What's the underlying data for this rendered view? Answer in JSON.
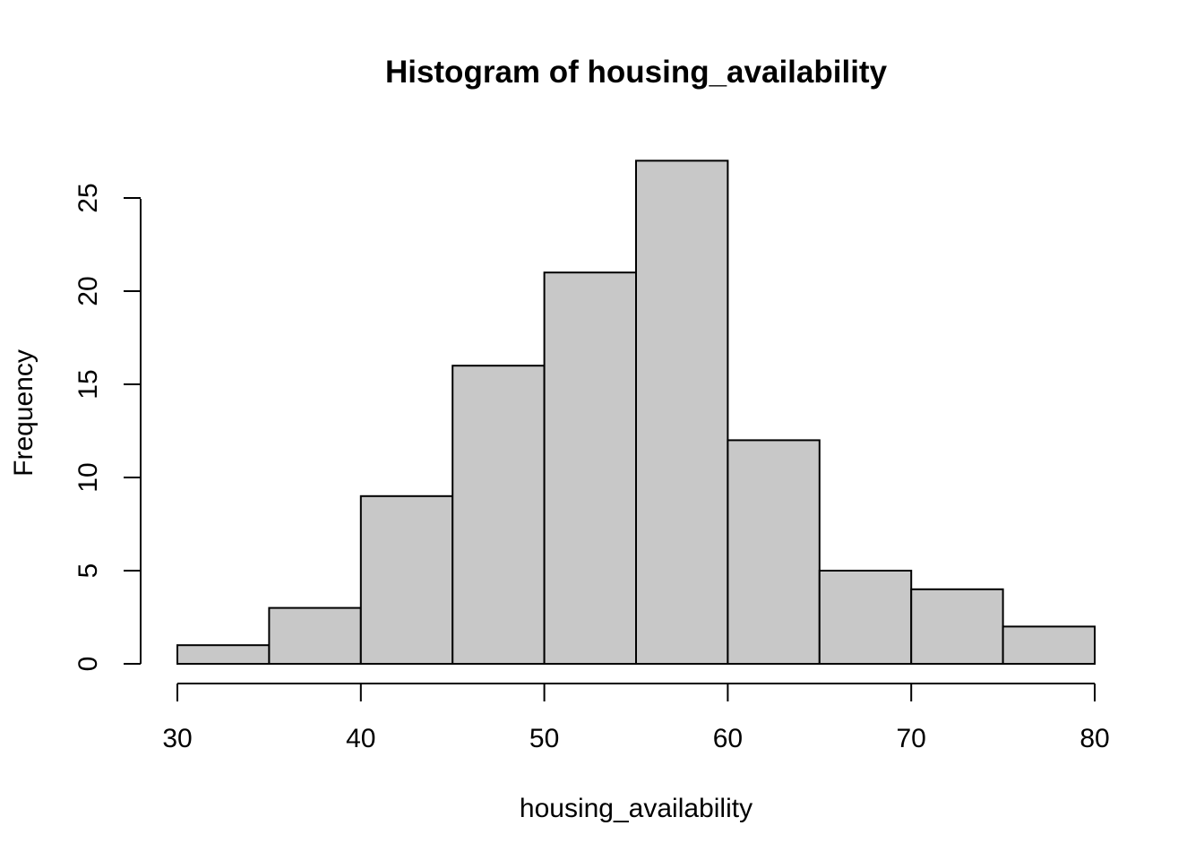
{
  "chart_data": {
    "type": "bar",
    "title": "Histogram of housing_availability",
    "xlabel": "housing_availability",
    "ylabel": "Frequency",
    "bins": [
      {
        "x0": 30,
        "x1": 35,
        "count": 1
      },
      {
        "x0": 35,
        "x1": 40,
        "count": 3
      },
      {
        "x0": 40,
        "x1": 45,
        "count": 9
      },
      {
        "x0": 45,
        "x1": 50,
        "count": 16
      },
      {
        "x0": 50,
        "x1": 55,
        "count": 21
      },
      {
        "x0": 55,
        "x1": 60,
        "count": 27
      },
      {
        "x0": 60,
        "x1": 65,
        "count": 12
      },
      {
        "x0": 65,
        "x1": 70,
        "count": 5
      },
      {
        "x0": 70,
        "x1": 75,
        "count": 4
      },
      {
        "x0": 75,
        "x1": 80,
        "count": 2
      }
    ],
    "xlim": [
      30,
      80
    ],
    "ylim": [
      0,
      27
    ],
    "xticks": [
      "30",
      "40",
      "50",
      "60",
      "70",
      "80"
    ],
    "yticks": [
      "0",
      "5",
      "10",
      "15",
      "20",
      "25"
    ],
    "bar_color": "#c8c8c8",
    "grid": false,
    "legend": "none"
  }
}
